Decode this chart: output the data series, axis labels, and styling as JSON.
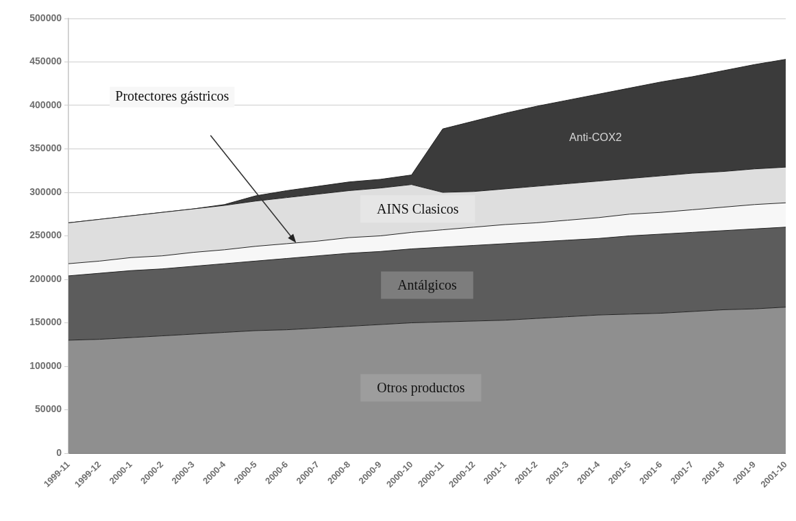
{
  "chart_data": {
    "type": "area",
    "stacked": true,
    "grid": "y",
    "legend": false,
    "categories": [
      "1999-11",
      "1999-12",
      "2000-1",
      "2000-2",
      "2000-3",
      "2000-4",
      "2000-5",
      "2000-6",
      "2000-7",
      "2000-8",
      "2000-9",
      "2000-10",
      "2000-11",
      "2000-12",
      "2001-1",
      "2001-2",
      "2001-3",
      "2001-4",
      "2001-5",
      "2001-6",
      "2001-7",
      "2001-8",
      "2001-9",
      "2001-10"
    ],
    "series": [
      {
        "name": "Otros productos",
        "color": "#8f8f8f",
        "values": [
          130000,
          131000,
          133000,
          135000,
          137000,
          139000,
          141000,
          142000,
          144000,
          146000,
          148000,
          150000,
          151000,
          152000,
          153000,
          155000,
          157000,
          159000,
          160000,
          161000,
          163000,
          165000,
          166000,
          168000
        ]
      },
      {
        "name": "Antálgicos",
        "color": "#5c5c5c",
        "values": [
          74000,
          76000,
          77000,
          77000,
          78000,
          79000,
          80000,
          82000,
          83000,
          84000,
          84000,
          85000,
          86000,
          87000,
          88000,
          88000,
          88000,
          88000,
          90000,
          91000,
          91000,
          91000,
          92000,
          92000
        ]
      },
      {
        "name": "Protectores gástricos",
        "color": "#f7f7f7",
        "values": [
          14000,
          14000,
          15000,
          15000,
          16000,
          16000,
          17000,
          17000,
          17000,
          18000,
          18000,
          19000,
          20000,
          21000,
          22000,
          22000,
          23000,
          24000,
          25000,
          25000,
          26000,
          27000,
          28000,
          28000
        ]
      },
      {
        "name": "AINS Clasicos",
        "color": "#dedede",
        "values": [
          47000,
          48000,
          48000,
          50000,
          50000,
          51000,
          52000,
          53000,
          54000,
          54000,
          55000,
          55000,
          43000,
          41000,
          41000,
          42000,
          42000,
          42000,
          41000,
          42000,
          42000,
          41000,
          41000,
          41000
        ]
      },
      {
        "name": "Anti-COX2",
        "color": "#3b3b3b",
        "values": [
          0,
          0,
          0,
          0,
          0,
          1000,
          6000,
          8000,
          9000,
          10000,
          10000,
          11000,
          73000,
          81000,
          87000,
          92000,
          96000,
          100000,
          104000,
          108000,
          111000,
          116000,
          120000,
          124000
        ]
      }
    ],
    "ylim": [
      0,
      500000
    ],
    "yticks": [
      0,
      50000,
      100000,
      150000,
      200000,
      250000,
      300000,
      350000,
      400000,
      450000,
      500000
    ]
  }
}
